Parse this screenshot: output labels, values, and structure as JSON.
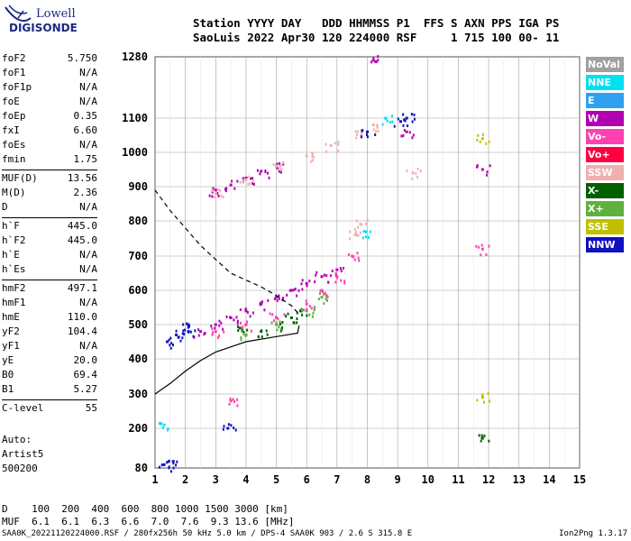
{
  "logo": {
    "line1": "Lowell",
    "line2": "DIGISONDE"
  },
  "header": {
    "line1": "Station YYYY DAY   DDD HHMMSS P1  FFS S AXN PPS IGA PS",
    "line2": "SaoLuis 2022 Apr30 120 224000 RSF     1 715 100 00- 11"
  },
  "params": {
    "group1": [
      {
        "name": "foF2",
        "value": "5.750"
      },
      {
        "name": "foF1",
        "value": "N/A"
      },
      {
        "name": "foF1p",
        "value": "N/A"
      },
      {
        "name": "foE",
        "value": "N/A"
      },
      {
        "name": "foEp",
        "value": "0.35"
      },
      {
        "name": "fxI",
        "value": "6.60"
      },
      {
        "name": "foEs",
        "value": "N/A"
      },
      {
        "name": "fmin",
        "value": "1.75"
      }
    ],
    "group2": [
      {
        "name": "MUF(D)",
        "value": "13.56"
      },
      {
        "name": "M(D)",
        "value": "2.36"
      },
      {
        "name": "D",
        "value": "N/A"
      }
    ],
    "group3": [
      {
        "name": "h`F",
        "value": "445.0"
      },
      {
        "name": "h`F2",
        "value": "445.0"
      },
      {
        "name": "h`E",
        "value": "N/A"
      },
      {
        "name": "h`Es",
        "value": "N/A"
      }
    ],
    "group4": [
      {
        "name": "hmF2",
        "value": "497.1"
      },
      {
        "name": "hmF1",
        "value": "N/A"
      },
      {
        "name": "hmE",
        "value": "110.0"
      },
      {
        "name": "yF2",
        "value": "104.4"
      },
      {
        "name": "yF1",
        "value": "N/A"
      },
      {
        "name": "yE",
        "value": "20.0"
      },
      {
        "name": "B0",
        "value": "69.4"
      },
      {
        "name": "B1",
        "value": "5.27"
      }
    ],
    "group5": [
      {
        "name": "C-level",
        "value": "55"
      }
    ]
  },
  "auto": {
    "line1": "Auto:",
    "line2": "Artist5",
    "line3": "500200"
  },
  "legend": [
    {
      "label": "NoVal",
      "color": "#a0a0a0"
    },
    {
      "label": "NNE",
      "color": "#00e0f0"
    },
    {
      "label": "E",
      "color": "#30a0f0"
    },
    {
      "label": "W",
      "color": "#b000b0"
    },
    {
      "label": "Vo-",
      "color": "#ff40b0"
    },
    {
      "label": "Vo+",
      "color": "#ff0040"
    },
    {
      "label": "SSW",
      "color": "#f0b0b0"
    },
    {
      "label": "X-",
      "color": "#006000"
    },
    {
      "label": "X+",
      "color": "#60b040"
    },
    {
      "label": "SSE",
      "color": "#c0c000"
    },
    {
      "label": "NNW",
      "color": "#1010c0"
    }
  ],
  "muf_table": {
    "line1": "D    100  200  400  600  800 1000 1500 3000 [km]",
    "line2": "MUF  6.1  6.1  6.3  6.6  7.0  7.6  9.3 13.6 [MHz]"
  },
  "footer": "SAA0K_20221120224000.RSF / 280fx256h 50 kHz 5.0 km / DPS-4 SAA0K 903 / 2.6 S 315.8 E",
  "version": "Ion2Png 1.3.17",
  "chart_data": {
    "type": "scatter",
    "xlim": [
      1,
      15
    ],
    "ylim": [
      80,
      1280
    ],
    "x_ticks": [
      "1",
      "2",
      "3",
      "4",
      "5",
      "6",
      "7",
      "8",
      "9",
      "10",
      "11",
      "12",
      "13",
      "14",
      "15"
    ],
    "y_ticks": [
      "80",
      "200",
      "300",
      "400",
      "500",
      "600",
      "700",
      "800",
      "900",
      "1000",
      "1100",
      "1280"
    ],
    "grid": true,
    "series": [
      {
        "name": "W",
        "color": "#b000b0",
        "points": [
          [
            2.5,
            480
          ],
          [
            3,
            500
          ],
          [
            3.5,
            520
          ],
          [
            4,
            540
          ],
          [
            4.5,
            560
          ],
          [
            5,
            580
          ],
          [
            5.5,
            600
          ],
          [
            6,
            620
          ],
          [
            6.5,
            640
          ],
          [
            7,
            660
          ],
          [
            3,
            890
          ],
          [
            3.5,
            905
          ],
          [
            4,
            925
          ],
          [
            4.5,
            945
          ],
          [
            5,
            960
          ],
          [
            8.2,
            1270
          ],
          [
            9.3,
            1060
          ],
          [
            11.8,
            950
          ]
        ]
      },
      {
        "name": "Vo-",
        "color": "#ff40b0",
        "points": [
          [
            3,
            480
          ],
          [
            4,
            500
          ],
          [
            5,
            520
          ],
          [
            6,
            560
          ],
          [
            6.5,
            600
          ],
          [
            7,
            640
          ],
          [
            7.5,
            700
          ],
          [
            3.5,
            280
          ],
          [
            11.8,
            720
          ]
        ]
      },
      {
        "name": "SSW",
        "color": "#f0b0b0",
        "points": [
          [
            3,
            880
          ],
          [
            4,
            920
          ],
          [
            5,
            960
          ],
          [
            6,
            990
          ],
          [
            6.8,
            1020
          ],
          [
            7.8,
            1050
          ],
          [
            8.2,
            1080
          ],
          [
            7.6,
            760
          ],
          [
            7.8,
            790
          ],
          [
            9.5,
            940
          ]
        ]
      },
      {
        "name": "X-",
        "color": "#006000",
        "points": [
          [
            4.5,
            480
          ],
          [
            5,
            500
          ],
          [
            5.5,
            520
          ],
          [
            5.8,
            540
          ],
          [
            3.8,
            490
          ],
          [
            11.8,
            170
          ]
        ]
      },
      {
        "name": "X+",
        "color": "#60b040",
        "points": [
          [
            4,
            470
          ],
          [
            5,
            500
          ],
          [
            6,
            540
          ],
          [
            6.5,
            580
          ]
        ]
      },
      {
        "name": "NNW",
        "color": "#1010c0",
        "points": [
          [
            1.4,
            450
          ],
          [
            1.7,
            470
          ],
          [
            2.1,
            480
          ],
          [
            2.1,
            500
          ],
          [
            8,
            1060
          ],
          [
            9.1,
            1090
          ],
          [
            9.3,
            1100
          ],
          [
            1.3,
            90
          ],
          [
            1.6,
            100
          ],
          [
            3.4,
            200
          ]
        ]
      },
      {
        "name": "SSE",
        "color": "#c0c000",
        "points": [
          [
            11.8,
            290
          ],
          [
            11.8,
            1040
          ]
        ]
      },
      {
        "name": "NNE",
        "color": "#00e0f0",
        "points": [
          [
            1.3,
            210
          ],
          [
            7.9,
            770
          ],
          [
            8.6,
            1100
          ]
        ]
      }
    ],
    "profile_solid": [
      [
        5.75,
        497
      ],
      [
        5.7,
        475
      ],
      [
        5,
        465
      ],
      [
        4,
        450
      ],
      [
        3,
        420
      ],
      [
        2.5,
        395
      ],
      [
        2,
        365
      ],
      [
        1.5,
        330
      ],
      [
        1,
        300
      ]
    ],
    "profile_dashed": [
      [
        1,
        890
      ],
      [
        1.5,
        830
      ],
      [
        2,
        780
      ],
      [
        2.5,
        730
      ],
      [
        3,
        690
      ],
      [
        3.5,
        650
      ],
      [
        4,
        630
      ],
      [
        4.5,
        610
      ],
      [
        5,
        585
      ],
      [
        5.5,
        555
      ],
      [
        5.75,
        530
      ]
    ]
  }
}
